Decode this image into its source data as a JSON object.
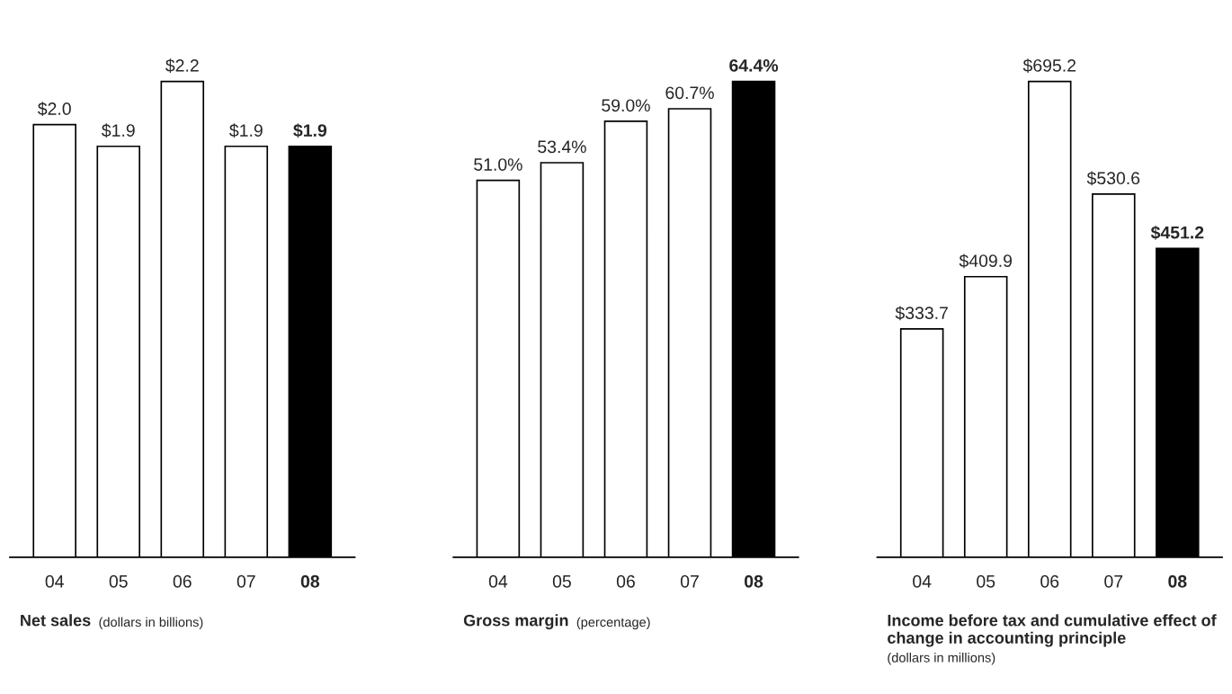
{
  "chart_data": [
    {
      "type": "bar",
      "title": "Net sales",
      "subtitle": "(dollars in billions)",
      "categories": [
        "04",
        "05",
        "06",
        "07",
        "08"
      ],
      "values": [
        2.0,
        1.9,
        2.2,
        1.9,
        1.9
      ],
      "value_labels": [
        "$2.0",
        "$1.9",
        "$2.2",
        "$1.9",
        "$1.9"
      ],
      "colors": [
        "#ffffff",
        "#ffffff",
        "#ffffff",
        "#ffffff",
        "#000000"
      ]
    },
    {
      "type": "bar",
      "title": "Gross margin",
      "subtitle": "(percentage)",
      "categories": [
        "04",
        "05",
        "06",
        "07",
        "08"
      ],
      "values": [
        51.0,
        53.4,
        59.0,
        60.7,
        64.4
      ],
      "value_labels": [
        "51.0%",
        "53.4%",
        "59.0%",
        "60.7%",
        "64.4%"
      ],
      "colors": [
        "#ffffff",
        "#ffffff",
        "#ffffff",
        "#ffffff",
        "#000000"
      ]
    },
    {
      "type": "bar",
      "title": "Income before tax and cumulative effect of change in accounting principle",
      "subtitle": "(dollars in millions)",
      "categories": [
        "04",
        "05",
        "06",
        "07",
        "08"
      ],
      "values": [
        333.7,
        409.9,
        695.2,
        530.6,
        451.2
      ],
      "value_labels": [
        "$333.7",
        "$409.9",
        "$695.2",
        "$530.6",
        "$451.2"
      ],
      "colors": [
        "#ffffff",
        "#ffffff",
        "#ffffff",
        "#ffffff",
        "#000000"
      ]
    }
  ]
}
